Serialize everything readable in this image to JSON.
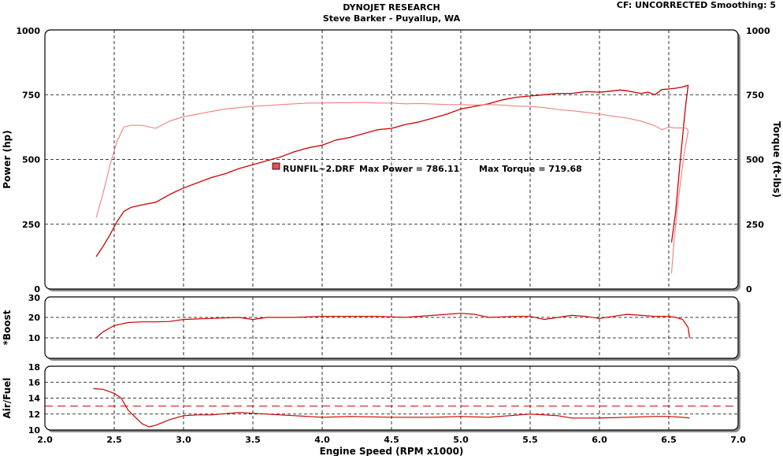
{
  "header": {
    "title": "DYNOJET RESEARCH",
    "subtitle": "Steve Barker - Puyallup, WA",
    "cf_info": "CF: UNCORRECTED  Smoothing: 5"
  },
  "legend": {
    "run_file": "RUNFIL~2.DRF",
    "max_power": "Max Power = 786.11",
    "max_torque": "Max Torque = 719.68",
    "marker_color": "#e85050"
  },
  "colors": {
    "power_line": "#cc0000",
    "torque_line": "#f08080",
    "boost_line": "#cc0000",
    "afr_line": "#cc0000",
    "afr_ref_line": "#cc0000"
  },
  "chart_data": [
    {
      "type": "line",
      "title": "",
      "xlabel": "",
      "ylabel": "Power (hp)",
      "y2label": "Torque (ft-lbs)",
      "xlim": [
        2.0,
        7.0
      ],
      "ylim": [
        0,
        1000
      ],
      "x_ticks": [
        2.0,
        2.5,
        3.0,
        3.5,
        4.0,
        4.5,
        5.0,
        5.5,
        6.0,
        6.5,
        7.0
      ],
      "y_tick_labels": [
        "0",
        "250",
        "500",
        "750",
        "1000"
      ],
      "y2_tick_labels": [
        "0",
        "250",
        "500",
        "750",
        "1000"
      ],
      "grid": true,
      "series": [
        {
          "name": "Power",
          "x": [
            2.37,
            2.42,
            2.47,
            2.52,
            2.57,
            2.62,
            2.7,
            2.8,
            2.9,
            3.0,
            3.1,
            3.2,
            3.3,
            3.4,
            3.5,
            3.6,
            3.7,
            3.8,
            3.9,
            4.0,
            4.1,
            4.2,
            4.3,
            4.4,
            4.5,
            4.6,
            4.7,
            4.8,
            4.9,
            5.0,
            5.1,
            5.2,
            5.3,
            5.4,
            5.5,
            5.6,
            5.7,
            5.8,
            5.9,
            6.0,
            6.05,
            6.1,
            6.15,
            6.2,
            6.25,
            6.3,
            6.35,
            6.4,
            6.45,
            6.5,
            6.55,
            6.6,
            6.63,
            6.64,
            6.62,
            6.58,
            6.55,
            6.52
          ],
          "values": [
            125,
            165,
            210,
            260,
            300,
            315,
            325,
            335,
            365,
            390,
            410,
            430,
            445,
            465,
            480,
            495,
            510,
            530,
            545,
            555,
            575,
            585,
            600,
            615,
            620,
            635,
            645,
            660,
            675,
            695,
            705,
            715,
            730,
            740,
            745,
            750,
            755,
            755,
            762,
            760,
            762,
            765,
            768,
            765,
            760,
            755,
            760,
            750,
            770,
            772,
            775,
            780,
            785,
            786,
            700,
            480,
            300,
            180
          ]
        },
        {
          "name": "Torque",
          "x": [
            2.37,
            2.42,
            2.47,
            2.52,
            2.57,
            2.62,
            2.7,
            2.8,
            2.9,
            3.0,
            3.1,
            3.2,
            3.3,
            3.4,
            3.5,
            3.6,
            3.7,
            3.8,
            3.9,
            4.0,
            4.1,
            4.2,
            4.3,
            4.4,
            4.5,
            4.6,
            4.7,
            4.8,
            4.9,
            5.0,
            5.1,
            5.2,
            5.3,
            5.4,
            5.5,
            5.6,
            5.7,
            5.8,
            5.9,
            6.0,
            6.1,
            6.2,
            6.3,
            6.4,
            6.45,
            6.5,
            6.55,
            6.6,
            6.63,
            6.64,
            6.61,
            6.57,
            6.54,
            6.52
          ],
          "values": [
            275,
            370,
            480,
            570,
            625,
            632,
            632,
            620,
            648,
            665,
            675,
            685,
            695,
            700,
            705,
            708,
            712,
            715,
            718,
            718,
            719,
            719,
            720,
            718,
            718,
            715,
            716,
            714,
            712,
            712,
            710,
            712,
            710,
            706,
            705,
            700,
            693,
            688,
            682,
            675,
            667,
            660,
            648,
            630,
            615,
            625,
            622,
            622,
            620,
            610,
            520,
            350,
            200,
            60
          ]
        }
      ]
    },
    {
      "type": "line",
      "title": "",
      "xlabel": "",
      "ylabel": "*Boost",
      "xlim": [
        2.0,
        7.0
      ],
      "ylim": [
        0,
        30
      ],
      "y_tick_labels": [
        "10",
        "20",
        "30"
      ],
      "grid": true,
      "series": [
        {
          "name": "Boost",
          "x": [
            2.37,
            2.42,
            2.5,
            2.6,
            2.7,
            2.8,
            2.9,
            3.0,
            3.2,
            3.4,
            3.5,
            3.6,
            3.8,
            4.0,
            4.2,
            4.4,
            4.6,
            4.8,
            5.0,
            5.1,
            5.2,
            5.4,
            5.5,
            5.6,
            5.7,
            5.8,
            5.9,
            6.0,
            6.1,
            6.2,
            6.3,
            6.4,
            6.5,
            6.55,
            6.6,
            6.64,
            6.65
          ],
          "values": [
            10,
            13,
            16,
            17.5,
            17.8,
            17.8,
            18,
            19,
            19.5,
            20,
            19,
            20,
            20,
            20.5,
            20.5,
            20.5,
            20,
            21,
            22,
            21.5,
            20,
            20.5,
            20.5,
            19,
            20,
            21,
            20.5,
            19.5,
            20.5,
            21.5,
            21,
            20.5,
            20.5,
            20,
            19,
            15,
            10
          ]
        }
      ]
    },
    {
      "type": "line",
      "title": "",
      "xlabel": "Engine Speed (RPM x1000)",
      "ylabel": "Air/Fuel",
      "xlim": [
        2.0,
        7.0
      ],
      "ylim": [
        10,
        18
      ],
      "x_tick_labels": [
        "2.0",
        "2.5",
        "3.0",
        "3.5",
        "4.0",
        "4.5",
        "5.0",
        "5.5",
        "6.0",
        "6.5",
        "7.0"
      ],
      "y_tick_labels": [
        "10",
        "12",
        "14",
        "16",
        "18"
      ],
      "grid": true,
      "reference_line": 13,
      "series": [
        {
          "name": "Air/Fuel",
          "x": [
            2.35,
            2.42,
            2.5,
            2.55,
            2.6,
            2.7,
            2.75,
            2.8,
            2.9,
            3.0,
            3.1,
            3.2,
            3.4,
            3.6,
            3.8,
            4.0,
            4.2,
            4.5,
            4.8,
            5.0,
            5.2,
            5.5,
            5.7,
            5.8,
            6.0,
            6.2,
            6.4,
            6.5,
            6.6,
            6.65
          ],
          "values": [
            15.2,
            15.1,
            14.6,
            14.0,
            12.5,
            10.8,
            10.4,
            10.6,
            11.3,
            11.8,
            11.9,
            11.9,
            12.2,
            12.0,
            11.8,
            11.6,
            11.7,
            11.6,
            11.6,
            11.7,
            11.6,
            12.0,
            11.8,
            11.5,
            11.5,
            11.6,
            11.7,
            11.7,
            11.6,
            11.5
          ]
        }
      ]
    }
  ]
}
